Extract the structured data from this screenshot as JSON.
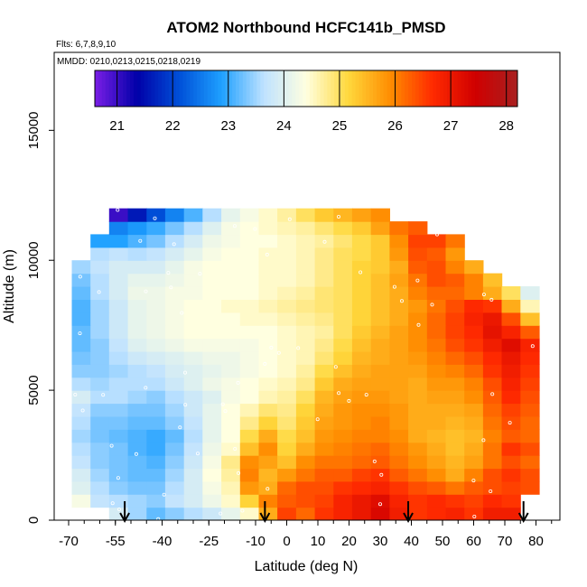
{
  "chart_data": {
    "type": "heatmap",
    "title": "ATOM2 Northbound HCFC141b_PMSD",
    "flights_note": "Flts: 6,7,8,9,10",
    "dates_note": "MMDD: 0210,0213,0215,0218,0219",
    "xlabel": "Latitude (deg N)",
    "ylabel": "Altitude (m)",
    "xlim": [
      -70,
      85
    ],
    "ylim": [
      0,
      18000
    ],
    "x_ticks": [
      -70,
      -55,
      -40,
      -25,
      -10,
      0,
      10,
      20,
      30,
      40,
      50,
      60,
      70,
      80
    ],
    "y_ticks": [
      0,
      5000,
      10000,
      15000
    ],
    "colorbar": {
      "range": [
        20.6,
        28.2
      ],
      "ticks": [
        21,
        22,
        23,
        24,
        25,
        26,
        27,
        28
      ],
      "colors": [
        "#7a1ee6",
        "#0000a8",
        "#0050d8",
        "#1ea0ff",
        "#bfe2ff",
        "#ffffe0",
        "#ffd83c",
        "#ff8c00",
        "#ff2a00",
        "#d00000",
        "#a82020"
      ]
    },
    "markers": {
      "description": "arrows at latitude positions along x-axis",
      "latitudes": [
        -52,
        -7,
        39,
        76
      ]
    },
    "grid_x": [
      -66,
      -60,
      -54,
      -48,
      -42,
      -36,
      -30,
      -24,
      -18,
      -12,
      -6,
      0,
      6,
      12,
      18,
      24,
      30,
      36,
      42,
      48,
      54,
      60,
      66,
      72,
      78
    ],
    "grid_y": [
      250,
      750,
      1250,
      1750,
      2250,
      2750,
      3250,
      3750,
      4250,
      4750,
      5250,
      5750,
      6250,
      6750,
      7250,
      7750,
      8250,
      8750,
      9250,
      9750,
      10250,
      10750,
      11250,
      11750
    ],
    "values": [
      [
        null,
        null,
        23.9,
        23.5,
        23.2,
        23.4,
        23.6,
        23.8,
        24.1,
        24.5,
        25.6,
        26.5,
        26.2,
        26.6,
        26.8,
        27.0,
        27.3,
        26.9,
        26.6,
        26.7,
        26.8,
        26.6,
        26.9,
        26.9,
        null
      ],
      [
        24.3,
        23.7,
        23.6,
        23.5,
        23.4,
        23.7,
        23.9,
        24.2,
        24.5,
        25.2,
        26.0,
        26.3,
        26.4,
        26.5,
        26.8,
        27.0,
        27.2,
        26.8,
        26.6,
        26.7,
        26.6,
        26.5,
        26.7,
        26.6,
        null
      ],
      [
        24.0,
        23.6,
        23.4,
        23.3,
        23.3,
        23.6,
        23.9,
        24.3,
        24.6,
        25.8,
        25.6,
        26.2,
        26.4,
        26.4,
        26.6,
        26.7,
        26.8,
        26.6,
        26.4,
        26.3,
        26.1,
        26.3,
        26.4,
        26.5,
        26.4
      ],
      [
        23.9,
        23.5,
        23.3,
        23.2,
        23.2,
        23.5,
        23.9,
        24.4,
        24.7,
        26.0,
        25.5,
        25.8,
        26.1,
        26.3,
        26.3,
        26.5,
        26.6,
        26.3,
        26.1,
        25.9,
        25.6,
        26.0,
        26.4,
        26.6,
        26.4
      ],
      [
        23.7,
        23.4,
        23.3,
        23.2,
        23.1,
        23.4,
        23.8,
        24.3,
        24.8,
        25.9,
        25.7,
        25.4,
        25.9,
        26.1,
        26.1,
        26.2,
        26.3,
        26.1,
        25.9,
        25.7,
        25.5,
        25.7,
        26.1,
        26.4,
        26.2
      ],
      [
        23.6,
        23.4,
        23.3,
        23.1,
        23.0,
        23.3,
        23.7,
        24.2,
        24.5,
        25.4,
        25.9,
        25.2,
        25.6,
        25.9,
        26.0,
        26.1,
        26.2,
        26.0,
        25.8,
        25.6,
        25.4,
        25.6,
        26.1,
        26.6,
        26.4
      ],
      [
        23.5,
        23.3,
        23.2,
        23.1,
        23.0,
        23.2,
        23.6,
        24.1,
        24.4,
        25.1,
        25.6,
        25.1,
        25.4,
        25.8,
        25.9,
        26.0,
        26.0,
        25.9,
        25.6,
        25.5,
        25.4,
        25.5,
        26.0,
        26.3,
        26.2
      ],
      [
        23.6,
        23.3,
        23.3,
        23.2,
        23.2,
        23.4,
        23.7,
        24.1,
        24.4,
        24.8,
        25.2,
        24.9,
        25.3,
        25.7,
        25.8,
        25.9,
        26.0,
        25.8,
        25.6,
        25.6,
        25.5,
        25.6,
        26.1,
        26.4,
        26.2
      ],
      [
        23.7,
        23.4,
        23.4,
        23.3,
        23.3,
        23.5,
        23.8,
        24.1,
        24.4,
        24.6,
        24.9,
        24.8,
        25.2,
        25.6,
        25.8,
        25.9,
        25.9,
        25.8,
        25.6,
        25.6,
        25.6,
        25.7,
        26.2,
        26.5,
        26.3
      ],
      [
        23.9,
        23.6,
        23.6,
        23.5,
        23.4,
        23.6,
        23.8,
        24.0,
        24.3,
        24.4,
        24.6,
        24.7,
        25.0,
        25.5,
        25.7,
        25.8,
        25.8,
        25.7,
        25.6,
        25.7,
        25.7,
        25.9,
        26.3,
        26.7,
        26.4
      ],
      [
        23.6,
        23.5,
        23.6,
        23.6,
        23.6,
        23.8,
        24.0,
        24.2,
        24.3,
        24.4,
        24.5,
        24.6,
        24.8,
        25.3,
        25.6,
        25.7,
        25.7,
        25.7,
        25.6,
        25.8,
        25.8,
        26.0,
        26.4,
        26.8,
        26.5
      ],
      [
        23.4,
        23.4,
        23.5,
        23.6,
        23.7,
        23.9,
        24.0,
        24.1,
        24.2,
        24.3,
        24.4,
        24.5,
        24.7,
        25.1,
        25.4,
        25.6,
        25.7,
        25.7,
        25.7,
        25.9,
        26.0,
        26.2,
        26.6,
        26.9,
        26.6
      ],
      [
        23.3,
        23.4,
        23.6,
        23.8,
        23.9,
        24.0,
        24.1,
        24.2,
        24.2,
        24.3,
        24.4,
        24.5,
        24.6,
        24.9,
        25.2,
        25.5,
        25.6,
        25.7,
        25.8,
        26.0,
        26.2,
        26.4,
        26.7,
        27.0,
        26.7
      ],
      [
        23.2,
        23.4,
        23.7,
        24.0,
        24.1,
        24.2,
        24.3,
        24.3,
        24.3,
        24.3,
        24.4,
        24.5,
        24.6,
        24.8,
        25.1,
        25.4,
        25.6,
        25.7,
        25.9,
        26.1,
        26.4,
        26.6,
        26.9,
        27.2,
        26.8
      ],
      [
        23.2,
        23.5,
        23.8,
        24.1,
        24.2,
        24.3,
        24.4,
        24.4,
        24.4,
        24.4,
        24.4,
        24.5,
        24.6,
        24.7,
        25.0,
        25.3,
        25.5,
        25.7,
        25.9,
        26.2,
        26.5,
        26.7,
        27.1,
        26.8,
        26.3
      ],
      [
        23.1,
        23.5,
        23.8,
        24.1,
        24.2,
        24.3,
        24.4,
        24.4,
        24.4,
        24.5,
        24.5,
        24.6,
        24.7,
        24.8,
        25.0,
        25.2,
        25.4,
        25.6,
        25.9,
        26.2,
        26.5,
        26.8,
        27.0,
        26.4,
        25.4
      ],
      [
        23.1,
        23.5,
        23.8,
        24.1,
        24.2,
        24.3,
        24.4,
        24.4,
        24.5,
        24.5,
        24.6,
        24.7,
        24.8,
        24.9,
        25.0,
        25.2,
        25.4,
        25.6,
        25.8,
        26.1,
        26.4,
        26.7,
        26.6,
        25.6,
        24.6
      ],
      [
        23.2,
        23.6,
        23.9,
        24.2,
        24.2,
        24.3,
        24.3,
        24.4,
        24.4,
        24.4,
        24.5,
        24.6,
        24.7,
        24.9,
        25.0,
        25.2,
        25.4,
        25.6,
        26.0,
        26.2,
        26.2,
        26.0,
        25.6,
        25.0,
        24.0
      ],
      [
        23.3,
        23.6,
        23.9,
        24.1,
        24.1,
        24.2,
        24.3,
        24.4,
        24.4,
        24.4,
        24.5,
        24.5,
        24.6,
        24.8,
        25.0,
        25.2,
        25.4,
        25.7,
        26.1,
        26.4,
        26.3,
        26.0,
        25.4,
        null,
        null
      ],
      [
        23.5,
        23.7,
        23.9,
        23.9,
        23.9,
        24.1,
        24.3,
        24.4,
        24.4,
        24.4,
        24.5,
        24.5,
        24.6,
        24.8,
        25.0,
        25.2,
        25.3,
        25.6,
        26.3,
        26.4,
        26.0,
        25.6,
        null,
        null,
        null
      ],
      [
        null,
        23.6,
        23.7,
        23.6,
        23.7,
        23.9,
        24.1,
        24.3,
        24.4,
        24.4,
        24.5,
        24.5,
        24.6,
        24.8,
        25.0,
        25.1,
        25.3,
        25.8,
        26.4,
        26.3,
        25.8,
        null,
        null,
        null,
        null
      ],
      [
        null,
        22.9,
        22.9,
        23.1,
        23.3,
        23.6,
        23.9,
        24.2,
        24.3,
        24.4,
        24.4,
        24.5,
        24.6,
        24.7,
        24.9,
        25.1,
        25.3,
        25.9,
        26.5,
        26.5,
        26.1,
        null,
        null,
        null,
        null
      ],
      [
        null,
        null,
        22.6,
        22.8,
        23.0,
        23.3,
        23.6,
        24.0,
        24.3,
        24.4,
        24.5,
        24.6,
        24.7,
        24.9,
        25.1,
        25.3,
        25.7,
        26.1,
        26.3,
        null,
        null,
        null,
        null,
        null,
        null
      ],
      [
        null,
        null,
        21.0,
        21.6,
        22.1,
        22.6,
        23.1,
        23.6,
        24.1,
        24.3,
        24.5,
        24.7,
        25.0,
        25.3,
        25.5,
        25.7,
        25.9,
        null,
        null,
        null,
        null,
        null,
        null,
        null,
        null
      ]
    ]
  }
}
